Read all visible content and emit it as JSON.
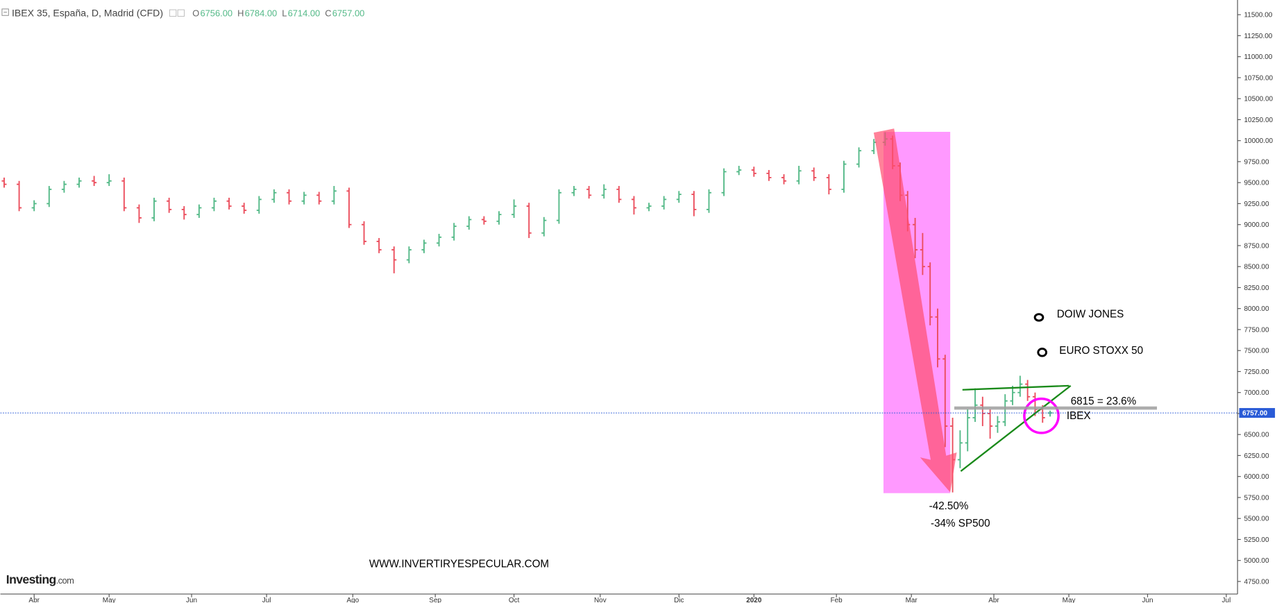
{
  "chart_data": {
    "type": "ohlc",
    "symbol": "IBEX 35, España, D, Madrid (CFD)",
    "legend_values": [
      {
        "key": "O",
        "value": "6756.00"
      },
      {
        "key": "H",
        "value": "6784.00"
      },
      {
        "key": "L",
        "value": "6714.00"
      },
      {
        "key": "C",
        "value": "6757.00"
      }
    ],
    "up_color": "#53b987",
    "down_color": "#eb4d5c",
    "x": [
      -8,
      -4,
      0,
      4,
      8,
      12,
      16,
      20,
      24,
      28,
      32,
      36,
      40,
      44,
      48,
      52,
      56,
      60,
      64,
      68,
      72,
      76,
      80,
      84,
      88,
      92,
      96,
      100,
      104,
      108,
      112,
      116,
      120,
      124,
      128,
      132,
      136,
      140,
      144,
      148,
      152,
      156,
      160,
      164,
      168,
      172,
      176,
      180,
      184,
      188,
      192,
      196,
      200,
      204,
      208,
      212,
      216,
      220,
      224,
      227,
      229,
      231,
      233,
      235,
      237,
      239,
      241,
      243,
      245,
      247,
      249,
      251,
      253,
      255,
      257,
      259,
      261,
      263,
      265,
      267,
      269,
      271
    ],
    "open": [
      9520,
      9480,
      9200,
      9250,
      9420,
      9480,
      9520,
      9500,
      9520,
      9200,
      9080,
      9280,
      9180,
      9120,
      9200,
      9280,
      9220,
      9170,
      9300,
      9380,
      9280,
      9350,
      9280,
      9400,
      9000,
      8800,
      8700,
      8580,
      8700,
      8780,
      8850,
      8980,
      9060,
      9040,
      9120,
      9220,
      8900,
      9050,
      9380,
      9420,
      9350,
      9420,
      9300,
      9200,
      9220,
      9300,
      9360,
      9180,
      9380,
      9630,
      9650,
      9610,
      9560,
      9520,
      9640,
      9560,
      9420,
      9720,
      9880,
      9980,
      10020,
      9700,
      9350,
      9000,
      8700,
      8500,
      7900,
      7400,
      6600,
      6200,
      6400,
      6700,
      6850,
      6750,
      6600,
      6650,
      6900,
      7000,
      7100,
      6950,
      6800,
      6756
    ],
    "high": [
      9560,
      9520,
      9290,
      9460,
      9520,
      9560,
      9580,
      9600,
      9560,
      9240,
      9320,
      9320,
      9220,
      9240,
      9320,
      9320,
      9260,
      9340,
      9420,
      9420,
      9390,
      9390,
      9460,
      9440,
      9040,
      8840,
      8740,
      8740,
      8820,
      8890,
      9020,
      9100,
      9100,
      9160,
      9300,
      9260,
      9090,
      9420,
      9460,
      9460,
      9480,
      9460,
      9340,
      9260,
      9340,
      9400,
      9400,
      9420,
      9670,
      9700,
      9690,
      9650,
      9600,
      9700,
      9680,
      9600,
      9760,
      9920,
      10020,
      10100,
      10060,
      9740,
      9400,
      9080,
      8900,
      8550,
      8000,
      7450,
      6700,
      6550,
      6800,
      7050,
      6950,
      6800,
      6720,
      6980,
      7080,
      7200,
      7150,
      7000,
      6850,
      6784
    ],
    "low": [
      9440,
      9160,
      9160,
      9210,
      9380,
      9440,
      9460,
      9460,
      9160,
      9020,
      9040,
      9140,
      9060,
      9080,
      9160,
      9180,
      9130,
      9130,
      9260,
      9240,
      9240,
      9240,
      9240,
      8960,
      8760,
      8660,
      8420,
      8540,
      8660,
      8740,
      8810,
      8940,
      9000,
      9000,
      9080,
      8840,
      8860,
      9010,
      9340,
      9310,
      9310,
      9260,
      9120,
      9160,
      9180,
      9260,
      9100,
      9140,
      9340,
      9590,
      9570,
      9520,
      9480,
      9480,
      9520,
      9360,
      9380,
      9680,
      9840,
      9940,
      9660,
      9280,
      8920,
      8600,
      8400,
      7800,
      7300,
      6350,
      5810,
      6100,
      6300,
      6650,
      6600,
      6450,
      6520,
      6600,
      6850,
      6950,
      6900,
      6720,
      6640,
      6714
    ],
    "close": [
      9480,
      9200,
      9250,
      9420,
      9480,
      9520,
      9500,
      9520,
      9200,
      9080,
      9280,
      9180,
      9120,
      9200,
      9280,
      9220,
      9170,
      9300,
      9380,
      9280,
      9350,
      9280,
      9400,
      9000,
      8800,
      8700,
      8580,
      8700,
      8780,
      8850,
      8980,
      9060,
      9040,
      9120,
      9220,
      8900,
      9050,
      9380,
      9420,
      9350,
      9420,
      9300,
      9200,
      9220,
      9300,
      9360,
      9180,
      9380,
      9630,
      9650,
      9610,
      9560,
      9520,
      9640,
      9560,
      9420,
      9720,
      9880,
      9980,
      10020,
      9700,
      9350,
      9000,
      8700,
      8500,
      7900,
      7400,
      6600,
      6200,
      6400,
      6700,
      6850,
      6750,
      6600,
      6650,
      6900,
      7000,
      7100,
      6950,
      6800,
      6700,
      6757
    ],
    "xlim": [
      -9,
      321
    ],
    "xticks": [
      {
        "value": 0,
        "label": "Abr"
      },
      {
        "value": 20,
        "label": "May"
      },
      {
        "value": 42,
        "label": "Jun"
      },
      {
        "value": 62,
        "label": "Jul"
      },
      {
        "value": 85,
        "label": "Ago"
      },
      {
        "value": 107,
        "label": "Sep"
      },
      {
        "value": 128,
        "label": "Oct"
      },
      {
        "value": 151,
        "label": "Nov"
      },
      {
        "value": 172,
        "label": "Dic"
      },
      {
        "value": 192,
        "label": "2020"
      },
      {
        "value": 214,
        "label": "Feb"
      },
      {
        "value": 234,
        "label": "Mar"
      },
      {
        "value": 256,
        "label": "Abr"
      },
      {
        "value": 276,
        "label": "May"
      },
      {
        "value": 297,
        "label": "Jun"
      },
      {
        "value": 318,
        "label": "Jul"
      }
    ],
    "ylim": [
      4600,
      11675
    ],
    "yticks": [
      {
        "value": 4750,
        "label": "4750.00"
      },
      {
        "value": 5000,
        "label": "5000.00"
      },
      {
        "value": 5250,
        "label": "5250.00"
      },
      {
        "value": 5500,
        "label": "5500.00"
      },
      {
        "value": 5750,
        "label": "5750.00"
      },
      {
        "value": 6000,
        "label": "6000.00"
      },
      {
        "value": 6250,
        "label": "6250.00"
      },
      {
        "value": 6500,
        "label": "6500.00"
      },
      {
        "value": 6750,
        "label": "6750.00"
      },
      {
        "value": 7000,
        "label": "7000.00"
      },
      {
        "value": 7250,
        "label": "7250.00"
      },
      {
        "value": 7500,
        "label": "7500.00"
      },
      {
        "value": 7750,
        "label": "7750.00"
      },
      {
        "value": 8000,
        "label": "8000.00"
      },
      {
        "value": 8250,
        "label": "8250.00"
      },
      {
        "value": 8500,
        "label": "8500.00"
      },
      {
        "value": 8750,
        "label": "8750.00"
      },
      {
        "value": 9000,
        "label": "9000.00"
      },
      {
        "value": 9250,
        "label": "9250.00"
      },
      {
        "value": 9500,
        "label": "9500.00"
      },
      {
        "value": 9750,
        "label": "9750.00"
      },
      {
        "value": 10000,
        "label": "10000.00"
      },
      {
        "value": 10250,
        "label": "10250.00"
      },
      {
        "value": 10500,
        "label": "10500.00"
      },
      {
        "value": 10750,
        "label": "10750.00"
      },
      {
        "value": 11000,
        "label": "11000.00"
      },
      {
        "value": 11250,
        "label": "11250.00"
      },
      {
        "value": 11500,
        "label": "11500.00"
      }
    ],
    "last_price": {
      "value": 6757,
      "label": "6757.00"
    },
    "fib_level": 6815,
    "annotations": {
      "dow": "DOIW JONES",
      "stoxx": "EURO STOXX 50",
      "fib": "6815 = 23.6%",
      "ibex": "IBEX",
      "drop": "-42.50%",
      "sp500": "-34% SP500",
      "website": "WWW.INVERTIRYESPECULAR.COM"
    },
    "brand": {
      "name": "Investing",
      "suffix": ".com"
    }
  }
}
